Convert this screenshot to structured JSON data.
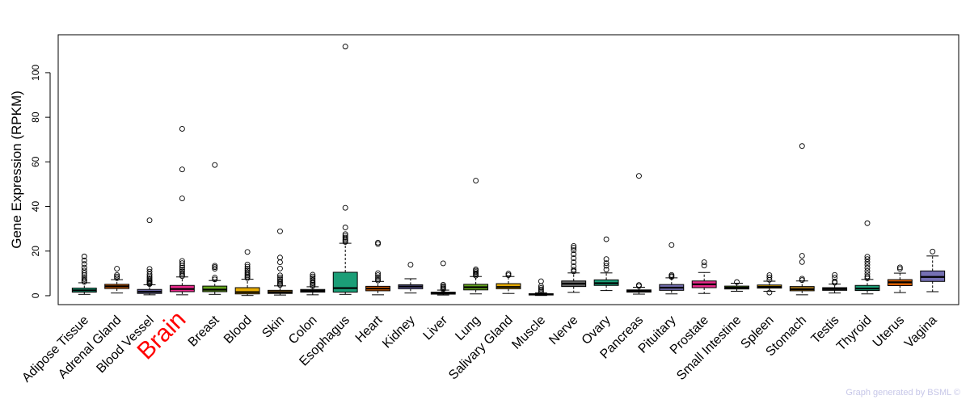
{
  "chart_data": {
    "type": "boxplot",
    "ylabel": "Gene Expression (RPKM)",
    "yticks": [
      0,
      20,
      40,
      60,
      80,
      100
    ],
    "ylim": [
      -4,
      117
    ],
    "highlight_category": "Brain",
    "highlight_color": "#ff0000",
    "categories": [
      {
        "name": "Adipose Tissue",
        "color": "#1b9e77",
        "whisker_low": 0.6,
        "q1": 1.6,
        "median": 2.4,
        "q3": 3.4,
        "whisker_high": 5.8,
        "outliers": [
          6.2,
          6.8,
          7.5,
          8.3,
          9.2,
          10.2,
          11.3,
          12.6,
          14.2,
          15.8,
          17.6
        ]
      },
      {
        "name": "Adrenal Gland",
        "color": "#d95f02",
        "whisker_low": 1.2,
        "q1": 3.2,
        "median": 4.2,
        "q3": 5.1,
        "whisker_high": 7.2,
        "outliers": [
          7.9,
          8.6,
          9.3,
          12.1
        ]
      },
      {
        "name": "Blood Vessel",
        "color": "#7570b3",
        "whisker_low": 0.4,
        "q1": 1.0,
        "median": 1.8,
        "q3": 2.8,
        "whisker_high": 4.9,
        "outliers": [
          5.2,
          5.6,
          6.1,
          6.6,
          7.2,
          7.9,
          8.7,
          9.6,
          10.8,
          12.0,
          33.8
        ]
      },
      {
        "name": "Brain",
        "color": "#e7298a",
        "whisker_low": 0.4,
        "q1": 1.8,
        "median": 3.0,
        "q3": 4.6,
        "whisker_high": 8.4,
        "outliers": [
          8.8,
          9.4,
          10.1,
          10.9,
          11.7,
          12.6,
          13.5,
          14.6,
          15.6,
          43.6,
          56.6,
          74.8
        ]
      },
      {
        "name": "Breast",
        "color": "#66a61e",
        "whisker_low": 0.6,
        "q1": 1.8,
        "median": 2.7,
        "q3": 4.3,
        "whisker_high": 6.8,
        "outliers": [
          7.3,
          8.1,
          12.1,
          12.8,
          13.4,
          58.6
        ]
      },
      {
        "name": "Blood",
        "color": "#e6ab02",
        "whisker_low": 0.1,
        "q1": 0.8,
        "median": 1.6,
        "q3": 3.6,
        "whisker_high": 7.4,
        "outliers": [
          7.9,
          8.5,
          9.1,
          9.8,
          10.5,
          11.3,
          12.1,
          13.0,
          14.0,
          19.6
        ]
      },
      {
        "name": "Skin",
        "color": "#a6761d",
        "whisker_low": 0.3,
        "q1": 1.0,
        "median": 1.6,
        "q3": 2.4,
        "whisker_high": 4.4,
        "outliers": [
          4.8,
          5.3,
          5.9,
          6.6,
          7.4,
          8.2,
          9.1,
          12.2,
          15.0,
          17.1,
          28.9
        ]
      },
      {
        "name": "Colon",
        "color": "#666666",
        "whisker_low": 0.4,
        "q1": 1.6,
        "median": 2.2,
        "q3": 2.8,
        "whisker_high": 4.0,
        "outliers": [
          4.4,
          5.0,
          5.6,
          6.2,
          7.0,
          7.8,
          8.6,
          9.4
        ]
      },
      {
        "name": "Esophagus",
        "color": "#1b9e77",
        "whisker_low": 0.6,
        "q1": 1.6,
        "median": 3.4,
        "q3": 10.5,
        "whisker_high": 23.5,
        "outliers": [
          24.1,
          24.7,
          25.3,
          26.0,
          26.8,
          27.6,
          30.6,
          39.4,
          111.7
        ]
      },
      {
        "name": "Heart",
        "color": "#d95f02",
        "whisker_low": 0.4,
        "q1": 2.2,
        "median": 3.2,
        "q3": 4.2,
        "whisker_high": 6.4,
        "outliers": [
          6.8,
          7.5,
          8.3,
          9.2,
          10.1,
          23.2,
          23.8
        ]
      },
      {
        "name": "Kidney",
        "color": "#7570b3",
        "whisker_low": 1.2,
        "q1": 3.1,
        "median": 4.1,
        "q3": 4.9,
        "whisker_high": 7.6,
        "outliers": [
          13.9
        ]
      },
      {
        "name": "Liver",
        "color": "#e7298a",
        "whisker_low": 0.3,
        "q1": 0.7,
        "median": 1.1,
        "q3": 1.6,
        "whisker_high": 2.5,
        "outliers": [
          2.9,
          3.3,
          3.8,
          4.3,
          4.9,
          14.5
        ]
      },
      {
        "name": "Lung",
        "color": "#66a61e",
        "whisker_low": 0.8,
        "q1": 2.6,
        "median": 3.8,
        "q3": 5.1,
        "whisker_high": 8.6,
        "outliers": [
          9.0,
          9.5,
          10.0,
          10.6,
          11.2,
          11.8,
          51.6
        ]
      },
      {
        "name": "Salivary Gland",
        "color": "#e6ab02",
        "whisker_low": 1.0,
        "q1": 3.1,
        "median": 3.9,
        "q3": 5.4,
        "whisker_high": 8.6,
        "outliers": [
          9.2,
          9.9
        ]
      },
      {
        "name": "Muscle",
        "color": "#a6761d",
        "whisker_low": 0.1,
        "q1": 0.3,
        "median": 0.6,
        "q3": 0.9,
        "whisker_high": 1.3,
        "outliers": [
          1.7,
          2.2,
          2.8,
          3.5,
          4.3,
          6.5
        ]
      },
      {
        "name": "Nerve",
        "color": "#666666",
        "whisker_low": 1.5,
        "q1": 4.1,
        "median": 5.4,
        "q3": 6.6,
        "whisker_high": 10.2,
        "outliers": [
          10.9,
          11.6,
          13.2,
          15.0,
          16.8,
          18.6,
          20.4,
          21.5,
          22.3
        ]
      },
      {
        "name": "Ovary",
        "color": "#1b9e77",
        "whisker_low": 2.3,
        "q1": 4.6,
        "median": 5.6,
        "q3": 7.1,
        "whisker_high": 10.2,
        "outliers": [
          11.7,
          13.4,
          14.6,
          16.4,
          25.3
        ]
      },
      {
        "name": "Pancreas",
        "color": "#d95f02",
        "whisker_low": 0.7,
        "q1": 1.6,
        "median": 2.1,
        "q3": 2.6,
        "whisker_high": 3.8,
        "outliers": [
          4.3,
          4.8,
          53.7
        ]
      },
      {
        "name": "Pituitary",
        "color": "#7570b3",
        "whisker_low": 0.8,
        "q1": 2.4,
        "median": 3.6,
        "q3": 5.0,
        "whisker_high": 8.0,
        "outliers": [
          8.4,
          8.8,
          9.3,
          22.7
        ]
      },
      {
        "name": "Prostate",
        "color": "#e7298a",
        "whisker_low": 1.0,
        "q1": 3.6,
        "median": 5.1,
        "q3": 6.6,
        "whisker_high": 10.4,
        "outliers": [
          13.5,
          15.0
        ]
      },
      {
        "name": "Small Intestine",
        "color": "#66a61e",
        "whisker_low": 2.0,
        "q1": 3.0,
        "median": 3.6,
        "q3": 4.3,
        "whisker_high": 5.6,
        "outliers": [
          6.1
        ]
      },
      {
        "name": "Spleen",
        "color": "#e6ab02",
        "whisker_low": 2.0,
        "q1": 3.4,
        "median": 4.0,
        "q3": 4.8,
        "whisker_high": 6.5,
        "outliers": [
          7.1,
          8.2,
          9.2,
          1.4
        ]
      },
      {
        "name": "Stomach",
        "color": "#a6761d",
        "whisker_low": 0.4,
        "q1": 2.2,
        "median": 2.9,
        "q3": 4.1,
        "whisker_high": 6.6,
        "outliers": [
          7.0,
          7.6,
          15.1,
          17.9,
          67.1
        ]
      },
      {
        "name": "Testis",
        "color": "#666666",
        "whisker_low": 1.2,
        "q1": 2.4,
        "median": 3.0,
        "q3": 3.6,
        "whisker_high": 5.2,
        "outliers": [
          5.8,
          6.4,
          8.1,
          9.3
        ]
      },
      {
        "name": "Thyroid",
        "color": "#1b9e77",
        "whisker_low": 0.8,
        "q1": 2.3,
        "median": 3.2,
        "q3": 4.6,
        "whisker_high": 7.3,
        "outliers": [
          7.8,
          8.6,
          9.8,
          11.1,
          12.5,
          13.9,
          15.1,
          16.4,
          17.5,
          32.5
        ]
      },
      {
        "name": "Uterus",
        "color": "#d95f02",
        "whisker_low": 1.4,
        "q1": 4.5,
        "median": 6.0,
        "q3": 7.2,
        "whisker_high": 10.1,
        "outliers": [
          12.0,
          12.7
        ]
      },
      {
        "name": "Vagina",
        "color": "#7570b3",
        "whisker_low": 1.8,
        "q1": 6.4,
        "median": 8.4,
        "q3": 11.1,
        "whisker_high": 17.8,
        "outliers": [
          19.8
        ]
      }
    ]
  },
  "footer": {
    "credit": "Graph generated by BSML ©"
  }
}
